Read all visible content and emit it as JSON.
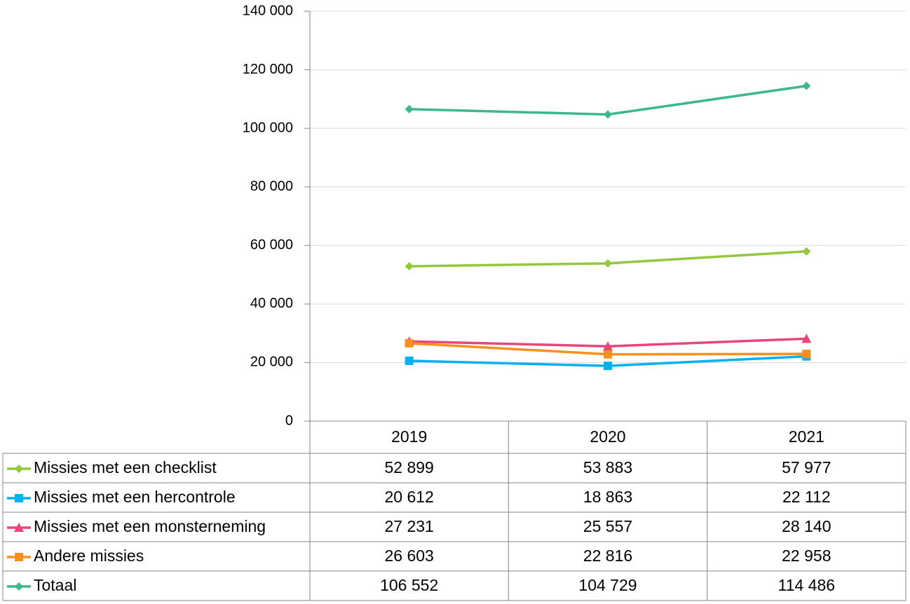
{
  "chart_data": {
    "type": "line",
    "title": "",
    "xlabel": "",
    "ylabel": "",
    "categories": [
      "2019",
      "2020",
      "2021"
    ],
    "ylim": [
      0,
      140000
    ],
    "ytick_values": [
      0,
      20000,
      40000,
      60000,
      80000,
      100000,
      120000,
      140000
    ],
    "ytick_labels": [
      "0",
      "20 000",
      "40 000",
      "60 000",
      "80 000",
      "100 000",
      "120 000",
      "140 000"
    ],
    "grid": true,
    "legend": "data-table-below",
    "series": [
      {
        "name": "Missies met een checklist",
        "values": [
          52899,
          53883,
          57977
        ],
        "labels": [
          "52 899",
          "53 883",
          "57 977"
        ],
        "color": "#92c83e",
        "marker": "diamond"
      },
      {
        "name": "Missies met een hercontrole",
        "values": [
          20612,
          18863,
          22112
        ],
        "labels": [
          "20 612",
          "18 863",
          "22 112"
        ],
        "color": "#00b0f0",
        "marker": "square"
      },
      {
        "name": "Missies met een monsterneming",
        "values": [
          27231,
          25557,
          28140
        ],
        "labels": [
          "27 231",
          "25 557",
          "28 140"
        ],
        "color": "#e8457a",
        "marker": "triangle"
      },
      {
        "name": "Andere missies",
        "values": [
          26603,
          22816,
          22958
        ],
        "labels": [
          "26 603",
          "22 816",
          "22 958"
        ],
        "color": "#f7901e",
        "marker": "square"
      },
      {
        "name": "Totaal",
        "values": [
          106552,
          104729,
          114486
        ],
        "labels": [
          "106 552",
          "104 729",
          "114 486"
        ],
        "color": "#3cb88c",
        "marker": "diamond"
      }
    ]
  }
}
